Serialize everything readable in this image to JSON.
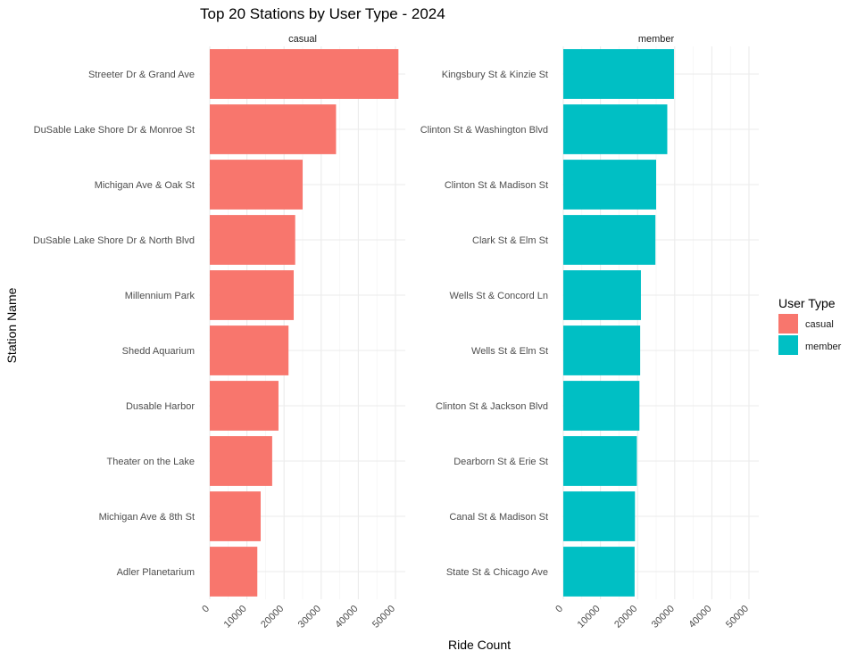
{
  "chart_data": {
    "type": "bar",
    "orientation": "horizontal",
    "title": "Top 20 Stations by User Type - 2024",
    "xlabel": "Ride Count",
    "ylabel": "Station Name",
    "xlim": [
      0,
      52000
    ],
    "x_ticks": [
      0,
      10000,
      20000,
      30000,
      40000,
      50000
    ],
    "x_tick_labels": [
      "0",
      "10000",
      "20000",
      "30000",
      "40000",
      "50000"
    ],
    "grid": true,
    "legend": {
      "title": "User Type",
      "position": "right",
      "entries": [
        {
          "label": "casual",
          "color": "#F8766D"
        },
        {
          "label": "member",
          "color": "#00BFC4"
        }
      ]
    },
    "panels": [
      {
        "strip": "casual",
        "color": "#F8766D",
        "categories": [
          "Streeter Dr & Grand Ave",
          "DuSable Lake Shore Dr & Monroe St",
          "Michigan Ave & Oak St",
          "DuSable Lake Shore Dr & North Blvd",
          "Millennium Park",
          "Shedd Aquarium",
          "Dusable Harbor",
          "Theater on the Lake",
          "Michigan Ave & 8th St",
          "Adler Planetarium"
        ],
        "values": [
          50800,
          34000,
          25000,
          23000,
          22600,
          21200,
          18500,
          16800,
          13700,
          12800
        ]
      },
      {
        "strip": "member",
        "color": "#00BFC4",
        "categories": [
          "Kingsbury St & Kinzie St",
          "Clinton St & Washington Blvd",
          "Clinton St & Madison St",
          "Clark St & Elm St",
          "Wells St & Concord Ln",
          "Wells St & Elm St",
          "Clinton St & Jackson Blvd",
          "Dearborn St & Erie St",
          "Canal St & Madison St",
          "State St & Chicago Ave"
        ],
        "values": [
          29800,
          28000,
          25000,
          24800,
          20900,
          20700,
          20500,
          19800,
          19300,
          19200
        ]
      }
    ]
  }
}
